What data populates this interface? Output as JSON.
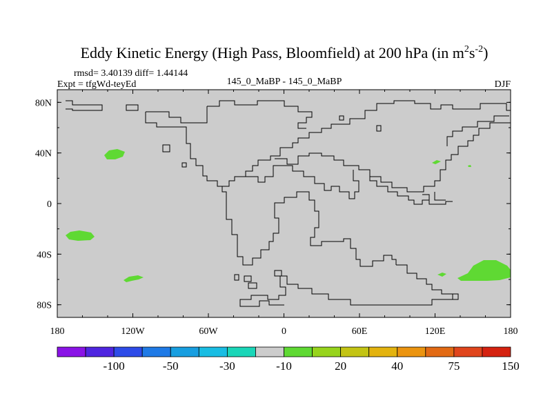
{
  "chart_data": {
    "type": "heatmap",
    "title": "Eddy Kinetic Energy (High Pass, Bloomfield) at 200 hPa (in m",
    "title_units_sup1": "2",
    "title_units_base": "s",
    "title_units_sup2": "-2",
    "title_units_close": ")",
    "stats_text": "rmsd= 3.40139 diff= 1.44144",
    "expt_text": "Expt = tfgWd-teyEd",
    "center_subtitle": "145_0_MaBP - 145_0_MaBP",
    "season": "DJF",
    "x_ticks": [
      "180",
      "120W",
      "60W",
      "0",
      "60E",
      "120E",
      "180"
    ],
    "y_ticks": [
      "80N",
      "40N",
      "0",
      "40S",
      "80S"
    ],
    "lon_range": [
      -180,
      180
    ],
    "lat_range": [
      -90,
      90
    ],
    "background_value": 0,
    "anomaly_regions": [
      {
        "lon": -137,
        "lat": 40,
        "value": 20
      },
      {
        "lon": -163,
        "lat": -25,
        "value": 20
      },
      {
        "lon": -123,
        "lat": -59,
        "value": 20
      },
      {
        "lon": 165,
        "lat": -52,
        "value": 20
      },
      {
        "lon": 124,
        "lat": -56,
        "value": 20
      },
      {
        "lon": 120,
        "lat": 33,
        "value": 20
      },
      {
        "lon": 146,
        "lat": 30,
        "value": 20
      }
    ],
    "colorbar": {
      "colors": [
        "#8a13e6",
        "#4f25e0",
        "#2d4be8",
        "#1f7ae6",
        "#179ee0",
        "#19bde3",
        "#1ad6b8",
        "#cccccc",
        "#5fd933",
        "#97d41c",
        "#c3c414",
        "#e3b30f",
        "#eb9410",
        "#e26a14",
        "#e0451c",
        "#d52210"
      ],
      "labels": [
        "-100",
        "-50",
        "-30",
        "-10",
        "20",
        "40",
        "75",
        "150"
      ]
    }
  }
}
